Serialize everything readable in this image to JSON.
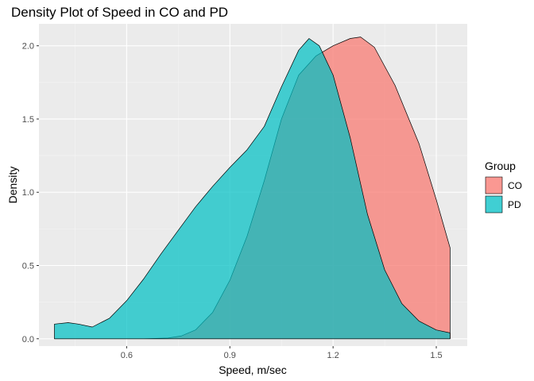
{
  "chart_data": {
    "type": "area",
    "title": "Density Plot of Speed in CO and PD",
    "xlabel": "Speed, m/sec",
    "ylabel": "Density",
    "xlim": [
      0.345,
      1.59
    ],
    "ylim": [
      -0.05,
      2.15
    ],
    "x_ticks": [
      0.6,
      0.9,
      1.2,
      1.5
    ],
    "x_tick_labels": [
      "0.6",
      "0.9",
      "1.2",
      "1.5"
    ],
    "y_ticks": [
      0,
      0.5,
      1.0,
      1.5,
      2.0
    ],
    "y_tick_labels": [
      "0.0",
      "0.5",
      "1.0",
      "1.5",
      "2.0"
    ],
    "grid": true,
    "legend": {
      "title": "Group",
      "placement": "right",
      "entries": [
        {
          "label": "CO",
          "color": "#f8766d"
        },
        {
          "label": "PD",
          "color": "#00bfc4"
        }
      ]
    },
    "series": [
      {
        "name": "CO",
        "color": "#f8766d",
        "x": [
          0.39,
          0.55,
          0.65,
          0.72,
          0.76,
          0.8,
          0.85,
          0.9,
          0.95,
          1.0,
          1.05,
          1.1,
          1.15,
          1.2,
          1.25,
          1.28,
          1.32,
          1.38,
          1.45,
          1.5,
          1.54
        ],
        "y": [
          0.0,
          0.0,
          0.0,
          0.005,
          0.02,
          0.06,
          0.18,
          0.4,
          0.7,
          1.08,
          1.5,
          1.8,
          1.93,
          2.0,
          2.05,
          2.06,
          1.99,
          1.73,
          1.33,
          0.95,
          0.62
        ]
      },
      {
        "name": "PD",
        "color": "#00bfc4",
        "x": [
          0.39,
          0.43,
          0.46,
          0.5,
          0.55,
          0.6,
          0.65,
          0.7,
          0.75,
          0.8,
          0.85,
          0.9,
          0.95,
          1.0,
          1.05,
          1.1,
          1.13,
          1.16,
          1.2,
          1.25,
          1.3,
          1.35,
          1.4,
          1.45,
          1.5,
          1.54
        ],
        "y": [
          0.1,
          0.11,
          0.1,
          0.08,
          0.14,
          0.26,
          0.41,
          0.58,
          0.74,
          0.9,
          1.04,
          1.17,
          1.29,
          1.45,
          1.72,
          1.97,
          2.05,
          2.0,
          1.8,
          1.37,
          0.85,
          0.47,
          0.24,
          0.12,
          0.06,
          0.04
        ]
      }
    ]
  }
}
